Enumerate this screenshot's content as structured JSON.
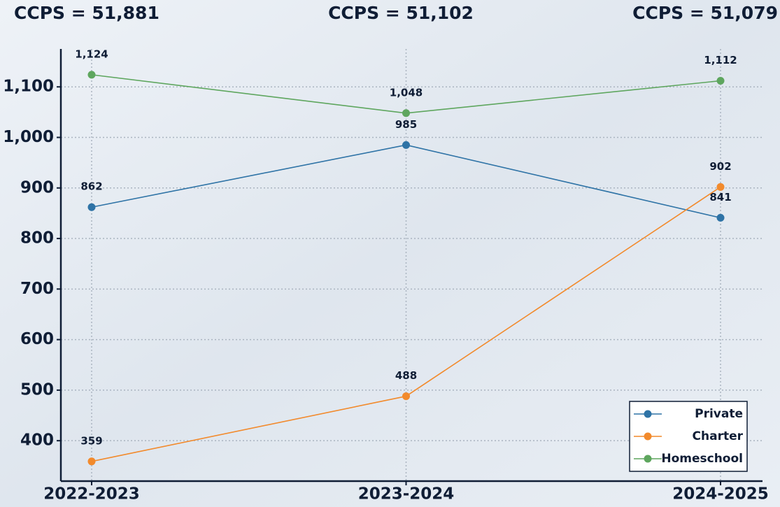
{
  "chart_data": {
    "type": "line",
    "annotations": [
      "CCPS = 51,881",
      "CCPS = 51,102",
      "CCPS = 51,079"
    ],
    "categories": [
      "2022-2023",
      "2023-2024",
      "2024-2025"
    ],
    "series": [
      {
        "name": "Private",
        "color": "#2e73a6",
        "values": [
          862,
          985,
          841
        ]
      },
      {
        "name": "Charter",
        "color": "#f28a2c",
        "values": [
          359,
          488,
          902
        ]
      },
      {
        "name": "Homeschool",
        "color": "#5ea65e",
        "values": [
          1124,
          1048,
          1112
        ],
        "value_labels": [
          "1,124",
          "1,048",
          "1,112"
        ]
      }
    ],
    "ylim": [
      320,
      1175
    ],
    "yticks": [
      400,
      500,
      600,
      700,
      800,
      900,
      {
        "value": 1000,
        "label": "1,000"
      },
      {
        "value": 1100,
        "label": "1,100"
      }
    ],
    "grid": true,
    "legend": "lower right"
  }
}
